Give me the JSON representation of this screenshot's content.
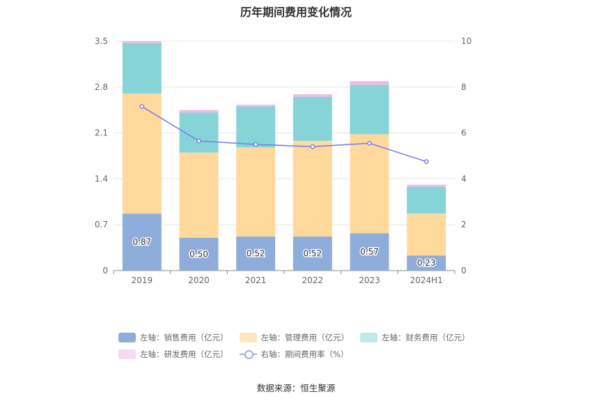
{
  "chart_data": {
    "type": "bar",
    "title": "历年期间费用变化情况",
    "categories": [
      "2019",
      "2020",
      "2021",
      "2022",
      "2023",
      "2024H1"
    ],
    "stacked": true,
    "y_left": {
      "ticks": [
        "0",
        "0.7",
        "1.4",
        "2.1",
        "2.8",
        "3.5"
      ],
      "ylim": [
        0,
        3.5
      ]
    },
    "y_right": {
      "ticks": [
        "0",
        "2",
        "4",
        "6",
        "8",
        "10"
      ],
      "ylim": [
        0,
        10
      ]
    },
    "grid": true,
    "legend_position": "bottom",
    "series": [
      {
        "name": "左轴：销售费用（亿元）",
        "axis": "left",
        "type": "bar",
        "color": "#8eaddb",
        "values": [
          0.87,
          0.5,
          0.52,
          0.52,
          0.57,
          0.23
        ],
        "data_labels": [
          "0.87",
          "0.50",
          "0.52",
          "0.52",
          "0.57",
          "0.23"
        ]
      },
      {
        "name": "左轴：管理费用（亿元）",
        "axis": "left",
        "type": "bar",
        "color": "#ffd99c",
        "values": [
          1.83,
          1.3,
          1.36,
          1.46,
          1.51,
          0.64
        ]
      },
      {
        "name": "左轴：财务费用（亿元）",
        "axis": "left",
        "type": "bar",
        "color": "#86d4d8",
        "values": [
          0.77,
          0.61,
          0.62,
          0.67,
          0.75,
          0.41
        ]
      },
      {
        "name": "左轴：研发费用（亿元）",
        "axis": "left",
        "type": "bar",
        "color": "#e8bfe0",
        "values": [
          0.03,
          0.04,
          0.03,
          0.04,
          0.06,
          0.03
        ]
      },
      {
        "name": "右轴：期间费用率（%）",
        "axis": "right",
        "type": "line",
        "color": "#7b7ff0",
        "values": [
          7.15,
          5.65,
          5.5,
          5.4,
          5.55,
          4.75
        ]
      }
    ],
    "source": "数据来源：恒生聚源"
  }
}
